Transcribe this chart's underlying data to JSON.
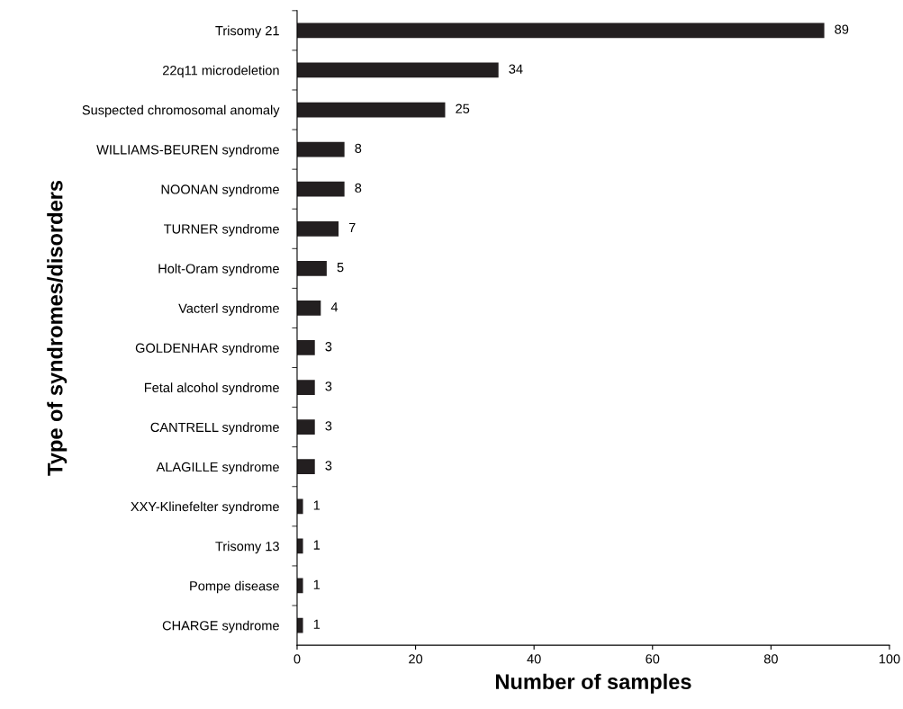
{
  "chart_data": {
    "type": "bar",
    "orientation": "horizontal",
    "xlabel": "Number of samples",
    "ylabel": "Type of syndromes/disorders",
    "categories": [
      "Trisomy 21",
      "22q11 microdeletion",
      "Suspected chromosomal anomaly",
      "WILLIAMS-BEUREN syndrome",
      "NOONAN syndrome",
      "TURNER syndrome",
      "Holt-Oram syndrome",
      "Vacterl syndrome",
      "GOLDENHAR syndrome",
      "Fetal alcohol syndrome",
      "CANTRELL syndrome",
      "ALAGILLE syndrome",
      "XXY-Klinefelter syndrome",
      "Trisomy 13",
      "Pompe disease",
      "CHARGE syndrome"
    ],
    "values": [
      89,
      34,
      25,
      8,
      8,
      7,
      5,
      4,
      3,
      3,
      3,
      3,
      1,
      1,
      1,
      1
    ],
    "color": "#231f20",
    "xlim": [
      0,
      100
    ],
    "xticks": [
      0,
      20,
      40,
      60,
      80,
      100
    ],
    "data_labels": true,
    "grid": false,
    "legend": false
  }
}
